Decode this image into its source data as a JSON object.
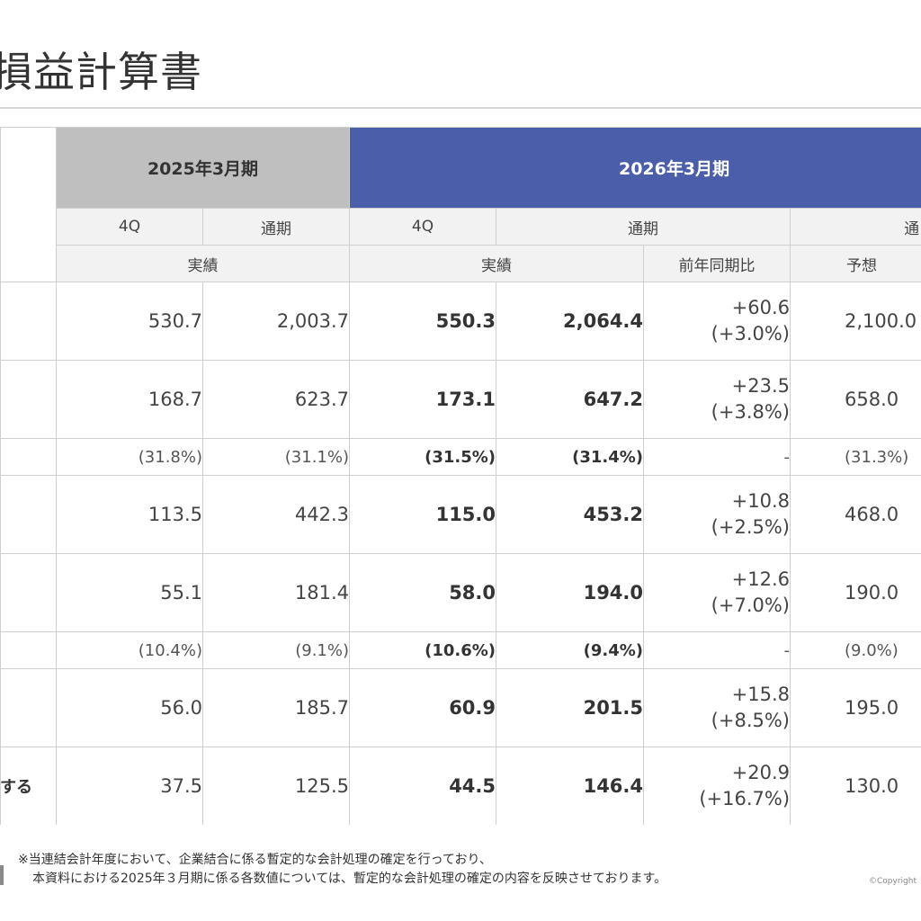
{
  "title": "損益計算書",
  "header": {
    "year_prev": "2025年3月期",
    "year_cur": "2026年3月期",
    "col_4q": "4Q",
    "col_full": "通期",
    "col_full_fc": "通",
    "actual": "実績",
    "yoy": "前年同期比",
    "forecast": "予想"
  },
  "rows": [
    {
      "label": "",
      "p4q": "530.7",
      "pfull": "2,003.7",
      "c4q": "550.3",
      "cfull": "2,064.4",
      "yoy1": "+60.6",
      "yoy2": "(+3.0%)",
      "fc": "2,100.0"
    },
    {
      "label": "",
      "p4q": "168.7",
      "pfull": "623.7",
      "c4q": "173.1",
      "cfull": "647.2",
      "yoy1": "+23.5",
      "yoy2": "(+3.8%)",
      "fc": "658.0"
    },
    {
      "label": "",
      "p4q": "(31.8%)",
      "pfull": "(31.1%)",
      "c4q": "(31.5%)",
      "cfull": "(31.4%)",
      "yoy1": "-",
      "yoy2": "",
      "fc": "(31.3%)"
    },
    {
      "label": "",
      "p4q": "113.5",
      "pfull": "442.3",
      "c4q": "115.0",
      "cfull": "453.2",
      "yoy1": "+10.8",
      "yoy2": "(+2.5%)",
      "fc": "468.0"
    },
    {
      "label": "",
      "p4q": "55.1",
      "pfull": "181.4",
      "c4q": "58.0",
      "cfull": "194.0",
      "yoy1": "+12.6",
      "yoy2": "(+7.0%)",
      "fc": "190.0"
    },
    {
      "label": "",
      "p4q": "(10.4%)",
      "pfull": "(9.1%)",
      "c4q": "(10.6%)",
      "cfull": "(9.4%)",
      "yoy1": "-",
      "yoy2": "",
      "fc": "(9.0%)"
    },
    {
      "label": "",
      "p4q": "56.0",
      "pfull": "185.7",
      "c4q": "60.9",
      "cfull": "201.5",
      "yoy1": "+15.8",
      "yoy2": "(+8.5%)",
      "fc": "195.0"
    },
    {
      "label": "する",
      "p4q": "37.5",
      "pfull": "125.5",
      "c4q": "44.5",
      "cfull": "146.4",
      "yoy1": "+20.9",
      "yoy2": "(+16.7%)",
      "fc": "130.0"
    }
  ],
  "footnote": {
    "line1": "※当連結会計年度において、企業結合に係る暫定的な会計処理の確定を行っており、",
    "line2": "本資料における2025年３月期に係る各数値については、暫定的な会計処理の確定の内容を反映させております。"
  },
  "copyright": "©Copyright",
  "colors": {
    "current_year_header": "#4a5eaa",
    "previous_year_header": "#bfbfbf"
  }
}
